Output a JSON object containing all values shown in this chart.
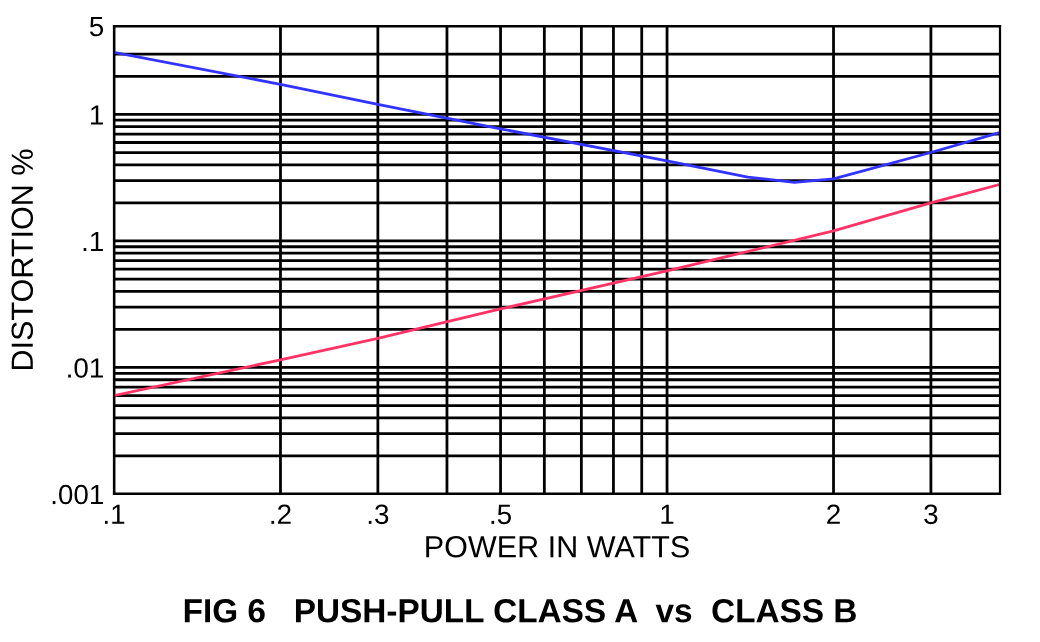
{
  "chart_data": {
    "type": "line",
    "title": "FIG 6   PUSH-PULL CLASS A  vs  CLASS B",
    "xlabel": "POWER IN WATTS",
    "ylabel": "DISTORTION %",
    "log": "xy",
    "grid": true,
    "line_style": "solid",
    "marker": "none",
    "xlim": [
      0.1,
      4
    ],
    "ylim": [
      0.001,
      5
    ],
    "xticks": [
      {
        "value": 0.1,
        "label": ".1"
      },
      {
        "value": 0.2,
        "label": ".2"
      },
      {
        "value": 0.3,
        "label": ".3"
      },
      {
        "value": 0.4,
        "label": null
      },
      {
        "value": 0.5,
        "label": ".5"
      },
      {
        "value": 0.6,
        "label": null
      },
      {
        "value": 0.7,
        "label": null
      },
      {
        "value": 0.8,
        "label": null
      },
      {
        "value": 0.9,
        "label": null
      },
      1,
      2,
      3
    ],
    "yticks": [
      {
        "value": 0.001,
        "label": ".001"
      },
      {
        "value": 0.002,
        "label": null
      },
      {
        "value": 0.003,
        "label": null
      },
      {
        "value": 0.004,
        "label": null
      },
      {
        "value": 0.005,
        "label": null
      },
      {
        "value": 0.006,
        "label": null
      },
      {
        "value": 0.007,
        "label": null
      },
      {
        "value": 0.008,
        "label": null
      },
      {
        "value": 0.009,
        "label": null
      },
      {
        "value": 0.01,
        "label": ".01"
      },
      {
        "value": 0.02,
        "label": null
      },
      {
        "value": 0.03,
        "label": null
      },
      {
        "value": 0.04,
        "label": null
      },
      {
        "value": 0.05,
        "label": null
      },
      {
        "value": 0.06,
        "label": null
      },
      {
        "value": 0.07,
        "label": null
      },
      {
        "value": 0.08,
        "label": null
      },
      {
        "value": 0.09,
        "label": null
      },
      {
        "value": 0.1,
        "label": ".1"
      },
      {
        "value": 0.2,
        "label": null
      },
      {
        "value": 0.3,
        "label": null
      },
      {
        "value": 0.4,
        "label": null
      },
      {
        "value": 0.5,
        "label": null
      },
      {
        "value": 0.6,
        "label": null
      },
      {
        "value": 0.7,
        "label": null
      },
      {
        "value": 0.8,
        "label": null
      },
      {
        "value": 0.9,
        "label": null
      },
      1,
      {
        "value": 2,
        "label": null
      },
      {
        "value": 3,
        "label": null
      },
      5
    ],
    "series": [
      {
        "color": "#3333ff",
        "x": [
          0.1,
          0.2,
          0.3,
          0.5,
          1,
          1.4,
          1.7,
          2,
          3,
          4
        ],
        "values": [
          3.1,
          1.73,
          1.2,
          0.77,
          0.43,
          0.32,
          0.29,
          0.31,
          0.5,
          0.72
        ]
      },
      {
        "color": "#ff3366",
        "x": [
          0.1,
          0.2,
          0.3,
          0.5,
          1,
          2,
          3,
          4
        ],
        "values": [
          0.006,
          0.0115,
          0.017,
          0.029,
          0.058,
          0.12,
          0.2,
          0.28
        ]
      }
    ]
  }
}
